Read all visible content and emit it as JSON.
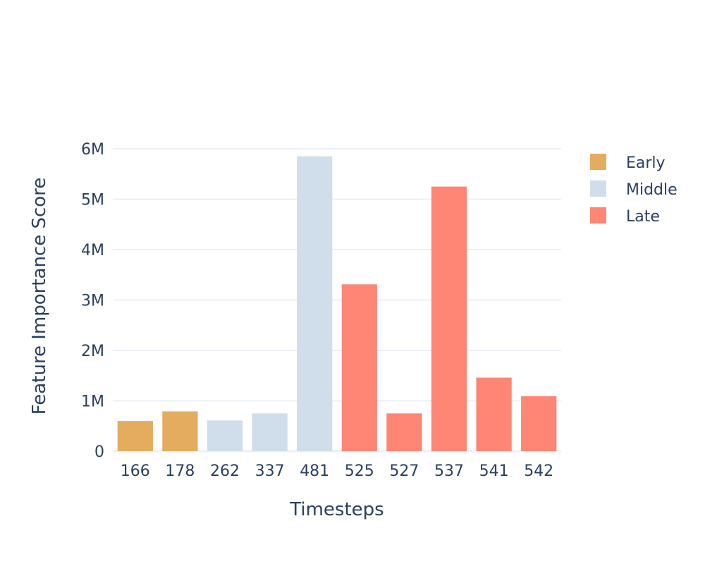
{
  "chart_data": {
    "type": "bar",
    "title": "",
    "xlabel": "Timesteps",
    "ylabel": "Feature Importance Score",
    "categories": [
      "166",
      "178",
      "262",
      "337",
      "481",
      "525",
      "527",
      "537",
      "541",
      "542"
    ],
    "values": [
      600000,
      790000,
      610000,
      750000,
      5850000,
      3310000,
      750000,
      5250000,
      1460000,
      1090000
    ],
    "groups": [
      "Early",
      "Early",
      "Middle",
      "Middle",
      "Middle",
      "Late",
      "Late",
      "Late",
      "Late",
      "Late"
    ],
    "series": [
      {
        "name": "Early",
        "color": "#e4ac5e"
      },
      {
        "name": "Middle",
        "color": "#cfdeea"
      },
      {
        "name": "Late",
        "color": "#ff8575"
      }
    ],
    "ylim": [
      0,
      6000000
    ],
    "yticks": [
      0,
      1000000,
      2000000,
      3000000,
      4000000,
      5000000,
      6000000
    ],
    "ytick_labels": [
      "0",
      "1M",
      "2M",
      "3M",
      "4M",
      "5M",
      "6M"
    ],
    "grid": true,
    "legend_position": "top-right"
  }
}
